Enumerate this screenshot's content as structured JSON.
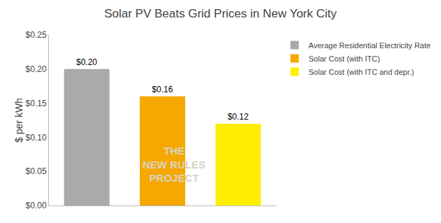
{
  "chart_data": {
    "type": "bar",
    "title": "Solar PV Beats Grid Prices in New York City",
    "ylabel": "$ per kWh",
    "categories": [
      null,
      null,
      null
    ],
    "series": [
      {
        "name": "Average Residential Electricity Rate",
        "color": "#aaaaaa",
        "values": [
          0.2,
          null,
          null
        ],
        "value_labels": [
          "$0.20",
          null,
          null
        ]
      },
      {
        "name": "Solar Cost (with ITC)",
        "color": "#f5a800",
        "values": [
          null,
          0.16,
          null
        ],
        "value_labels": [
          null,
          "$0.16",
          null
        ]
      },
      {
        "name": "Solar Cost (with ITC and depr.)",
        "color": "#ffee00",
        "values": [
          null,
          null,
          0.12
        ],
        "value_labels": [
          null,
          null,
          "$0.12"
        ]
      }
    ],
    "ylim": [
      0,
      0.25
    ],
    "yticks": [
      {
        "value": 0.0,
        "label": "$0.00"
      },
      {
        "value": 0.05,
        "label": "$0.05"
      },
      {
        "value": 0.1,
        "label": "$0.10"
      },
      {
        "value": 0.15,
        "label": "$0.15"
      },
      {
        "value": 0.2,
        "label": "$0.20"
      },
      {
        "value": 0.25,
        "label": "$0.25"
      }
    ],
    "data_labels": true,
    "tick_labels": "y",
    "grid": false,
    "legend": "upper right",
    "annotations": [
      {
        "text": "THE\nNEW RULES\nPROJECT",
        "color": "#d8d4c0"
      }
    ]
  }
}
